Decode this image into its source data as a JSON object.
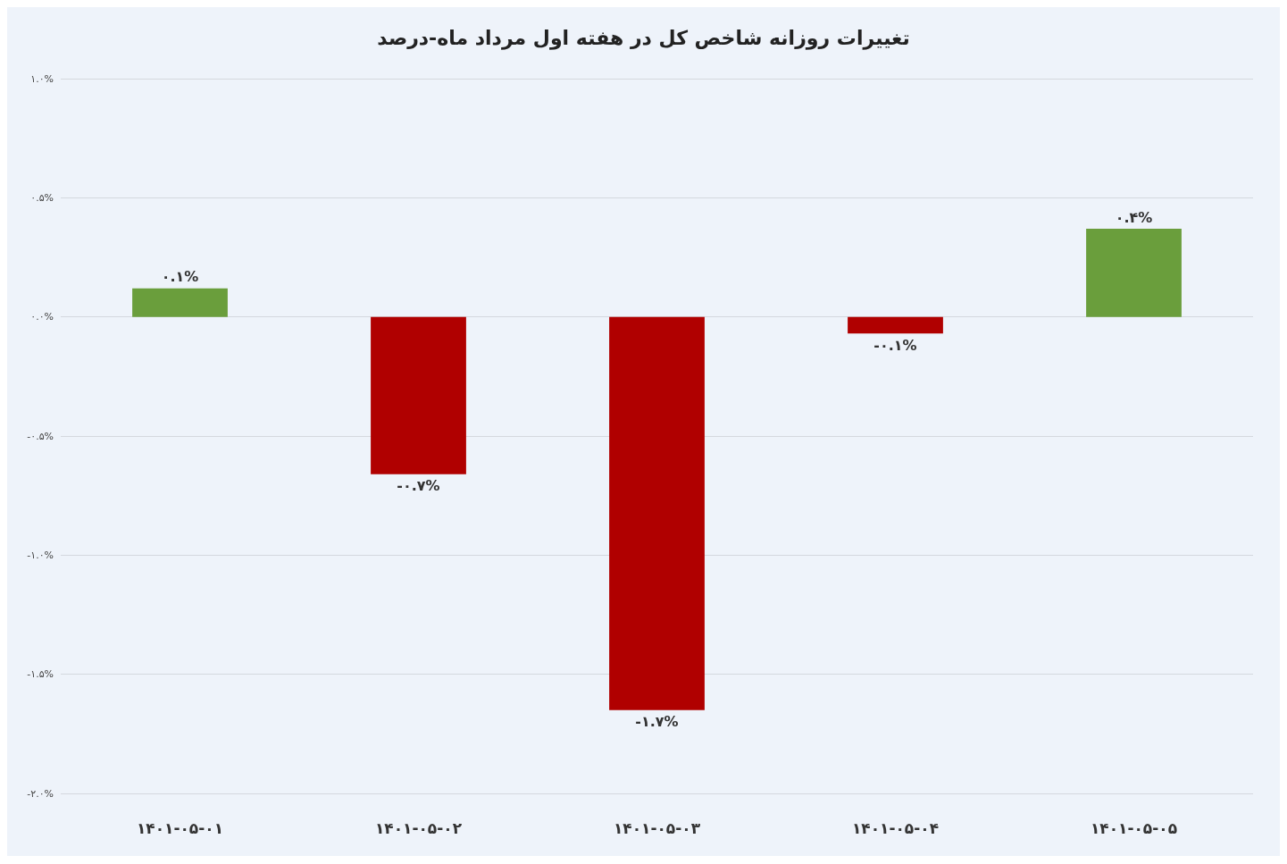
{
  "chart_data": {
    "type": "bar",
    "title": "تغییرات روزانه شاخص کل در هفته اول مرداد ماه-درصد",
    "categories": [
      "۱۴۰۱-۰۵-۰۱",
      "۱۴۰۱-۰۵-۰۲",
      "۱۴۰۱-۰۵-۰۳",
      "۱۴۰۱-۰۵-۰۴",
      "۱۴۰۱-۰۵-۰۵"
    ],
    "values": [
      0.12,
      -0.66,
      -1.65,
      -0.07,
      0.37
    ],
    "value_labels": [
      "۰.۱%",
      "-۰.۷%",
      "-۱.۷%",
      "-۰.۱%",
      "۰.۴%"
    ],
    "colors": [
      "#6a9e3c",
      "#b00000",
      "#b00000",
      "#b00000",
      "#6a9e3c"
    ],
    "ylim": [
      -2,
      1
    ],
    "yticks": [
      {
        "value": -2,
        "label": "-۲.۰%"
      },
      {
        "value": -1.5,
        "label": "-۱.۵%"
      },
      {
        "value": -1,
        "label": "-۱.۰%"
      },
      {
        "value": -0.5,
        "label": "-۰.۵%"
      },
      {
        "value": 0,
        "label": "۰.۰%"
      },
      {
        "value": 0.5,
        "label": "۰.۵%"
      },
      {
        "value": 1,
        "label": "۱.۰%"
      }
    ],
    "grid": "y"
  }
}
